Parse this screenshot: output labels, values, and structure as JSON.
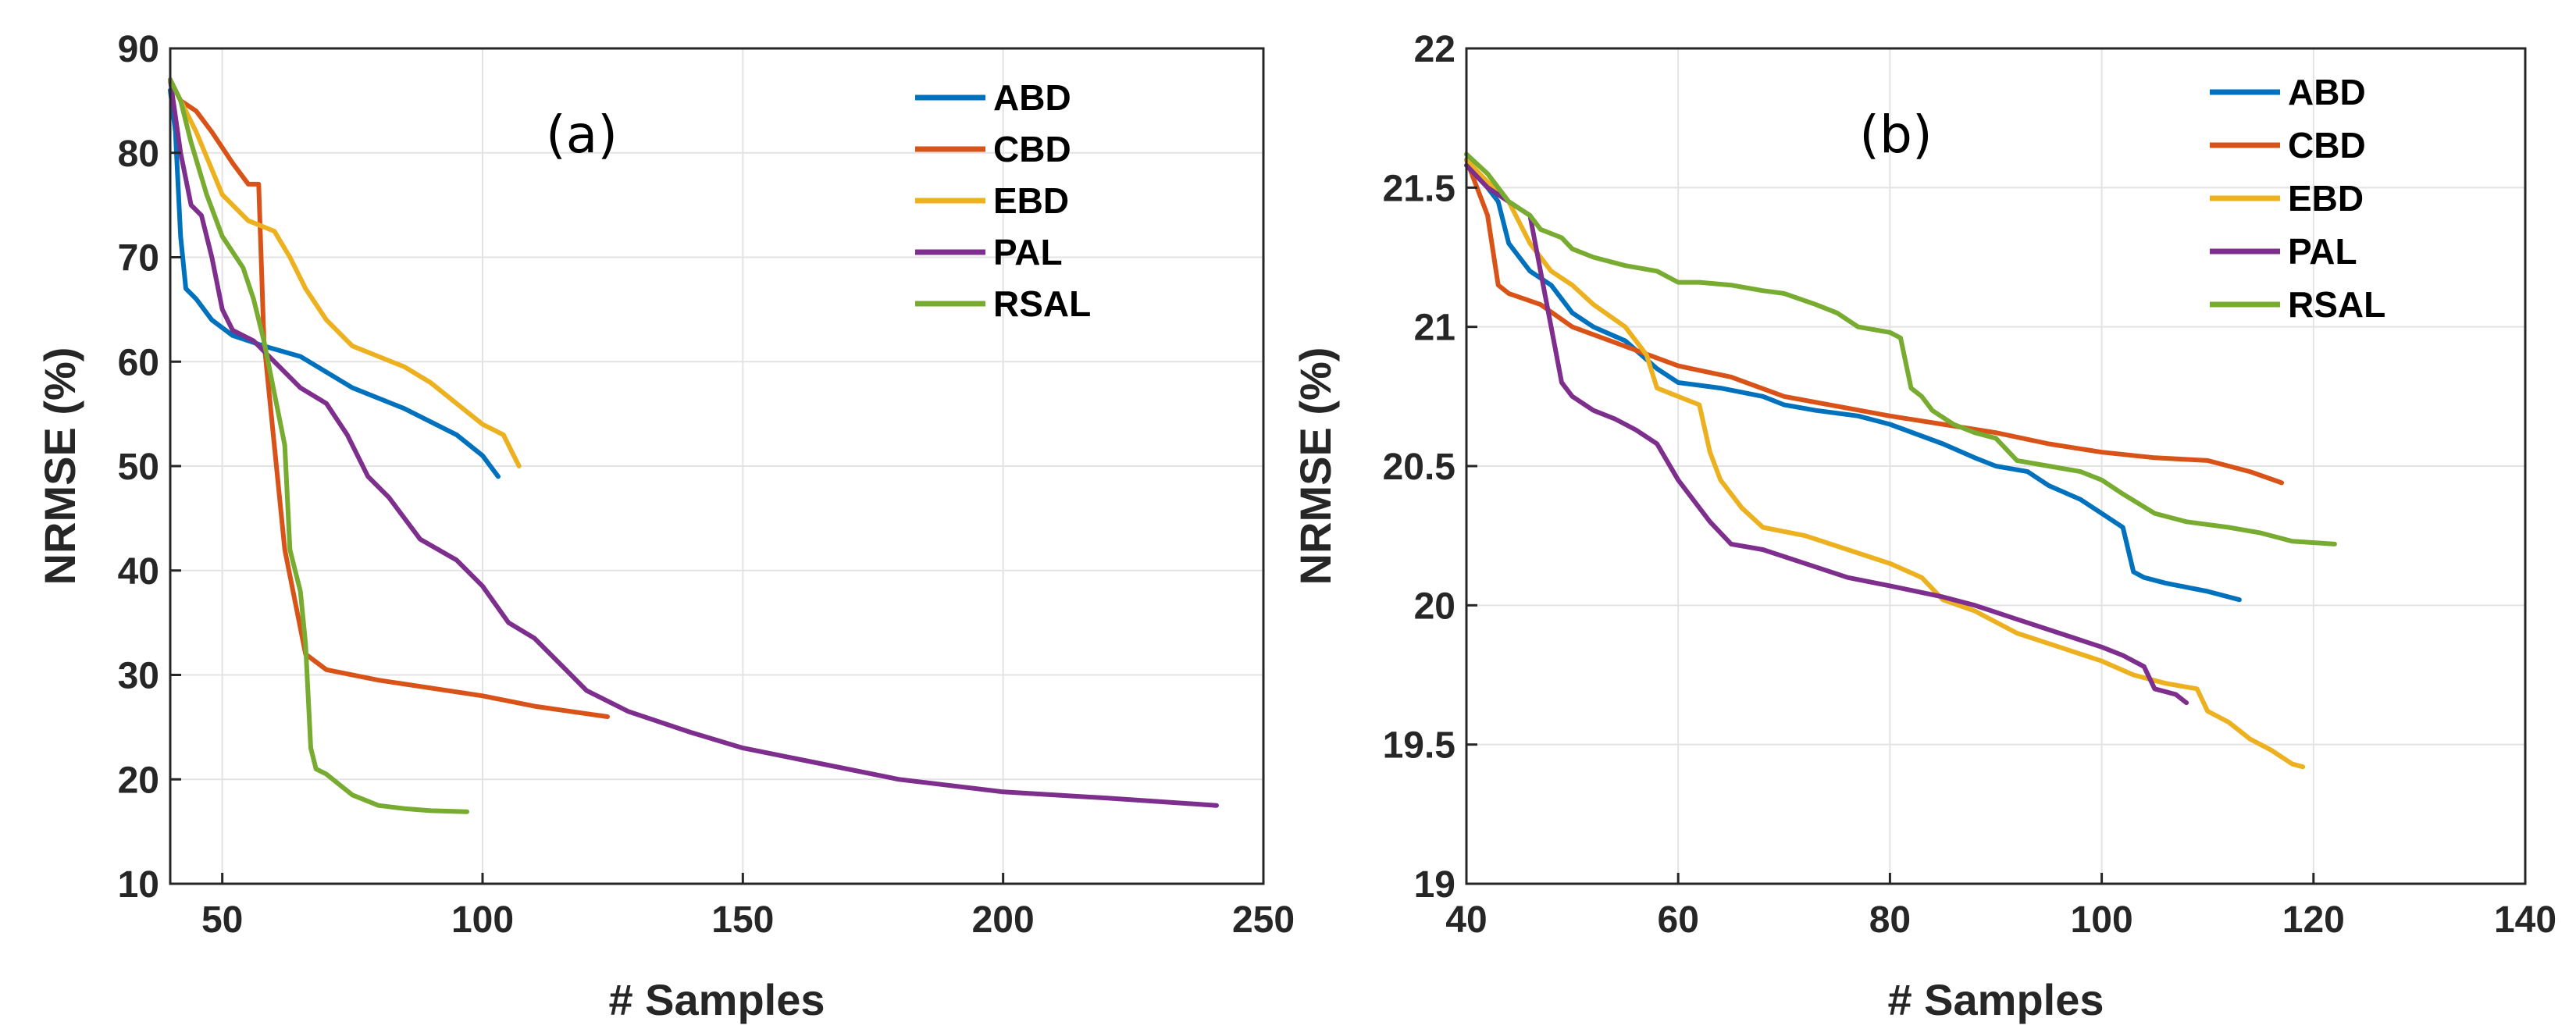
{
  "colors": {
    "ABD": "#0072BD",
    "CBD": "#D95319",
    "EBD": "#EDB120",
    "PAL": "#7E2F8E",
    "RSAL": "#77AC30"
  },
  "chart_data": [
    {
      "type": "line",
      "panel_label": "(a)",
      "title": "",
      "xlabel": "# Samples",
      "ylabel": "NRMSE (%)",
      "xlim": [
        40,
        250
      ],
      "ylim": [
        10,
        90
      ],
      "xticks": [
        "50",
        "100",
        "150",
        "200",
        "250"
      ],
      "yticks": [
        "10",
        "20",
        "30",
        "40",
        "50",
        "60",
        "70",
        "80",
        "90"
      ],
      "grid": true,
      "legend_position": "top-right",
      "series": [
        {
          "name": "ABD",
          "x": [
            40,
            41,
            42,
            43,
            45,
            48,
            52,
            58,
            65,
            75,
            85,
            95,
            100,
            103
          ],
          "y": [
            86,
            82,
            72,
            67,
            66,
            64,
            62.5,
            61.5,
            60.5,
            57.5,
            55.5,
            53,
            51,
            49
          ]
        },
        {
          "name": "CBD",
          "x": [
            40,
            42,
            45,
            48,
            52,
            55,
            57,
            58,
            60,
            62,
            64,
            66,
            70,
            80,
            100,
            110,
            124
          ],
          "y": [
            87,
            85,
            84,
            82,
            79,
            77,
            77,
            62,
            52,
            42,
            37,
            32,
            30.5,
            29.5,
            28,
            27,
            26
          ]
        },
        {
          "name": "EBD",
          "x": [
            40,
            42,
            45,
            50,
            55,
            60,
            63,
            66,
            70,
            75,
            85,
            90,
            95,
            100,
            104,
            106,
            107
          ],
          "y": [
            87,
            85,
            82,
            76,
            73.5,
            72.5,
            70,
            67,
            64,
            61.5,
            59.5,
            58,
            56,
            54,
            53,
            51,
            50
          ]
        },
        {
          "name": "PAL",
          "x": [
            40,
            42,
            44,
            46,
            48,
            50,
            52,
            56,
            62,
            65,
            70,
            74,
            78,
            82,
            88,
            95,
            100,
            105,
            110,
            115,
            120,
            128,
            140,
            150,
            160,
            180,
            200,
            220,
            241
          ],
          "y": [
            87,
            80,
            75,
            74,
            70,
            65,
            63,
            62,
            59,
            57.5,
            56,
            53,
            49,
            47,
            43,
            41,
            38.5,
            35,
            33.5,
            31,
            28.5,
            26.5,
            24.5,
            23,
            22,
            20,
            18.8,
            18.2,
            17.5
          ]
        },
        {
          "name": "RSAL",
          "x": [
            40,
            42,
            44,
            47,
            50,
            54,
            56,
            58,
            60,
            62,
            63,
            64,
            65,
            66,
            67,
            68,
            70,
            75,
            80,
            85,
            90,
            97
          ],
          "y": [
            87,
            85,
            81,
            76,
            72,
            69,
            66,
            62,
            57,
            52,
            42,
            40,
            38,
            33,
            23,
            21,
            20.5,
            18.5,
            17.5,
            17.2,
            17,
            16.9
          ]
        }
      ]
    },
    {
      "type": "line",
      "panel_label": "(b)",
      "title": "",
      "xlabel": "# Samples",
      "ylabel": "NRMSE (%)",
      "xlim": [
        40,
        140
      ],
      "ylim": [
        19,
        22
      ],
      "xticks": [
        "40",
        "60",
        "80",
        "100",
        "120",
        "140"
      ],
      "yticks": [
        "19",
        "19.5",
        "20",
        "20.5",
        "21",
        "21.5",
        "22"
      ],
      "grid": true,
      "legend_position": "top-right",
      "series": [
        {
          "name": "ABD",
          "x": [
            40,
            41,
            42,
            43,
            44,
            46,
            48,
            50,
            52,
            55,
            58,
            60,
            64,
            68,
            70,
            73,
            77,
            80,
            85,
            88,
            90,
            93,
            95,
            98,
            100,
            102,
            103,
            104,
            106,
            110,
            113
          ],
          "y": [
            21.6,
            21.55,
            21.5,
            21.45,
            21.3,
            21.2,
            21.15,
            21.05,
            21.0,
            20.95,
            20.85,
            20.8,
            20.78,
            20.75,
            20.72,
            20.7,
            20.68,
            20.65,
            20.58,
            20.53,
            20.5,
            20.48,
            20.43,
            20.38,
            20.33,
            20.28,
            20.12,
            20.1,
            20.08,
            20.05,
            20.02
          ]
        },
        {
          "name": "CBD",
          "x": [
            40,
            41,
            42,
            43,
            44,
            47,
            50,
            55,
            60,
            65,
            70,
            80,
            90,
            95,
            100,
            105,
            110,
            114,
            117
          ],
          "y": [
            21.6,
            21.5,
            21.4,
            21.15,
            21.12,
            21.08,
            21.0,
            20.93,
            20.86,
            20.82,
            20.75,
            20.68,
            20.62,
            20.58,
            20.55,
            20.53,
            20.52,
            20.48,
            20.44
          ]
        },
        {
          "name": "EBD",
          "x": [
            40,
            42,
            44,
            46,
            48,
            50,
            52,
            55,
            57,
            58,
            60,
            62,
            63,
            64,
            66,
            68,
            72,
            76,
            80,
            83,
            85,
            88,
            92,
            96,
            100,
            103,
            106,
            109,
            110,
            112,
            114,
            116,
            118,
            119
          ],
          "y": [
            21.6,
            21.52,
            21.45,
            21.3,
            21.2,
            21.15,
            21.08,
            21.0,
            20.9,
            20.78,
            20.75,
            20.72,
            20.55,
            20.45,
            20.35,
            20.28,
            20.25,
            20.2,
            20.15,
            20.1,
            20.02,
            19.98,
            19.9,
            19.85,
            19.8,
            19.75,
            19.72,
            19.7,
            19.62,
            19.58,
            19.52,
            19.48,
            19.43,
            19.42
          ]
        },
        {
          "name": "PAL",
          "x": [
            40,
            42,
            44,
            46,
            47,
            48,
            49,
            50,
            52,
            54,
            56,
            58,
            60,
            61,
            63,
            65,
            68,
            72,
            76,
            80,
            85,
            88,
            92,
            96,
            100,
            102,
            104,
            105,
            107,
            108
          ],
          "y": [
            21.58,
            21.5,
            21.45,
            21.4,
            21.2,
            21.0,
            20.8,
            20.75,
            20.7,
            20.67,
            20.63,
            20.58,
            20.45,
            20.4,
            20.3,
            20.22,
            20.2,
            20.15,
            20.1,
            20.07,
            20.03,
            20.0,
            19.95,
            19.9,
            19.85,
            19.82,
            19.78,
            19.7,
            19.68,
            19.65
          ]
        },
        {
          "name": "RSAL",
          "x": [
            40,
            42,
            44,
            46,
            47,
            49,
            50,
            52,
            55,
            58,
            60,
            62,
            65,
            68,
            70,
            73,
            75,
            77,
            80,
            81,
            82,
            83,
            84,
            86,
            88,
            90,
            92,
            95,
            98,
            100,
            102,
            105,
            108,
            112,
            115,
            118,
            122
          ],
          "y": [
            21.62,
            21.55,
            21.45,
            21.4,
            21.35,
            21.32,
            21.28,
            21.25,
            21.22,
            21.2,
            21.16,
            21.16,
            21.15,
            21.13,
            21.12,
            21.08,
            21.05,
            21.0,
            20.98,
            20.96,
            20.78,
            20.75,
            20.7,
            20.65,
            20.62,
            20.6,
            20.52,
            20.5,
            20.48,
            20.45,
            20.4,
            20.33,
            20.3,
            20.28,
            20.26,
            20.23,
            20.22
          ]
        }
      ]
    }
  ]
}
